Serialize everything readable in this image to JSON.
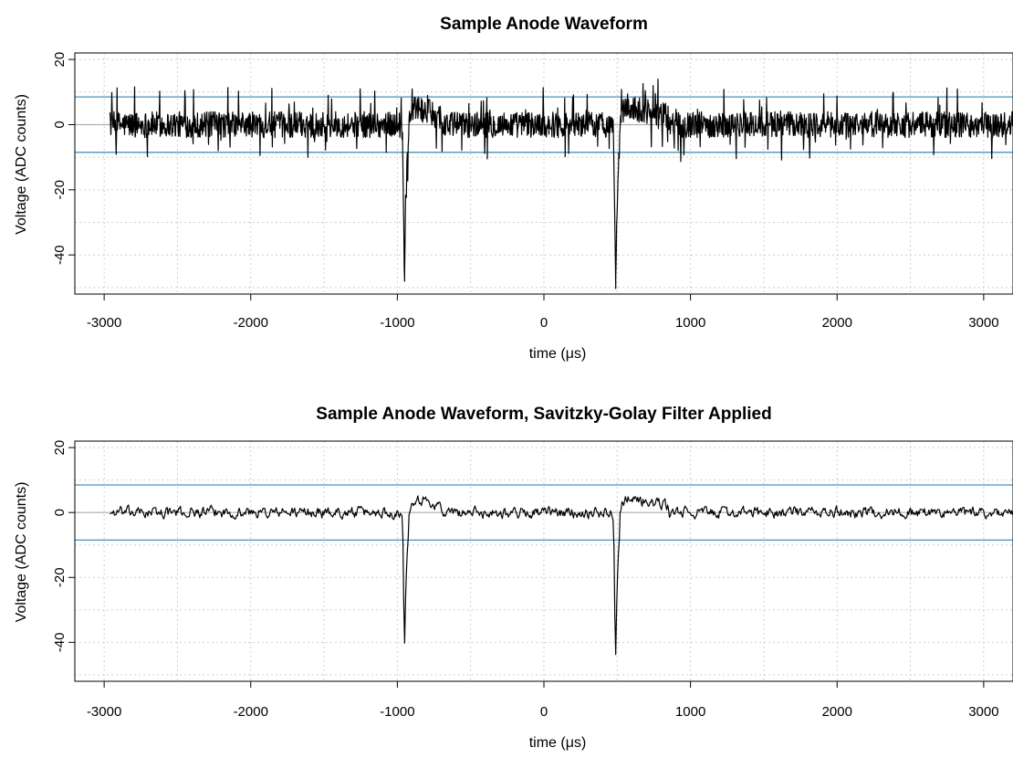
{
  "chart_data": [
    {
      "type": "line",
      "title": "Sample Anode Waveform",
      "xlabel": "time (μs)",
      "ylabel": "Voltage (ADC counts)",
      "xlim": [
        -3200,
        3200
      ],
      "ylim": [
        -52,
        22
      ],
      "x_ticks": [
        -3000,
        -2000,
        -1000,
        0,
        1000,
        2000,
        3000
      ],
      "y_ticks": [
        20,
        0,
        -20,
        -40
      ],
      "grid": true,
      "reference_lines": [
        {
          "kind": "baseline",
          "y": 0,
          "color": "#b0b0b0"
        },
        {
          "kind": "threshold",
          "y": 8.5,
          "color": "#4a90c0"
        },
        {
          "kind": "threshold",
          "y": -8.5,
          "color": "#4a90c0"
        }
      ],
      "series": [
        {
          "color": "#000000",
          "noise_amplitude": 4,
          "filtered": false,
          "x_range": [
            -2960,
            3200
          ],
          "pulses": [
            {
              "x": -950,
              "y": -45
            },
            {
              "x": 490,
              "y": -47
            }
          ],
          "post_pulse_overshoot": [
            {
              "x_start": -920,
              "x_end": -700,
              "y": 6
            },
            {
              "x_start": 520,
              "x_end": 850,
              "y": 6
            }
          ]
        }
      ]
    },
    {
      "type": "line",
      "title": "Sample Anode Waveform, Savitzky-Golay Filter Applied",
      "xlabel": "time (μs)",
      "ylabel": "Voltage (ADC counts)",
      "xlim": [
        -3200,
        3200
      ],
      "ylim": [
        -52,
        22
      ],
      "x_ticks": [
        -3000,
        -2000,
        -1000,
        0,
        1000,
        2000,
        3000
      ],
      "y_ticks": [
        20,
        0,
        -20,
        -40
      ],
      "grid": true,
      "reference_lines": [
        {
          "kind": "baseline",
          "y": 0,
          "color": "#b0b0b0"
        },
        {
          "kind": "threshold",
          "y": 8.5,
          "color": "#4a90c0"
        },
        {
          "kind": "threshold",
          "y": -8.5,
          "color": "#4a90c0"
        }
      ],
      "series": [
        {
          "color": "#000000",
          "noise_amplitude": 2.5,
          "filtered": true,
          "x_range": [
            -2960,
            3200
          ],
          "pulses": [
            {
              "x": -950,
              "y": -40
            },
            {
              "x": 490,
              "y": -43
            }
          ],
          "post_pulse_overshoot": [
            {
              "x_start": -920,
              "x_end": -700,
              "y": 5
            },
            {
              "x_start": 520,
              "x_end": 850,
              "y": 5
            }
          ]
        }
      ]
    }
  ]
}
